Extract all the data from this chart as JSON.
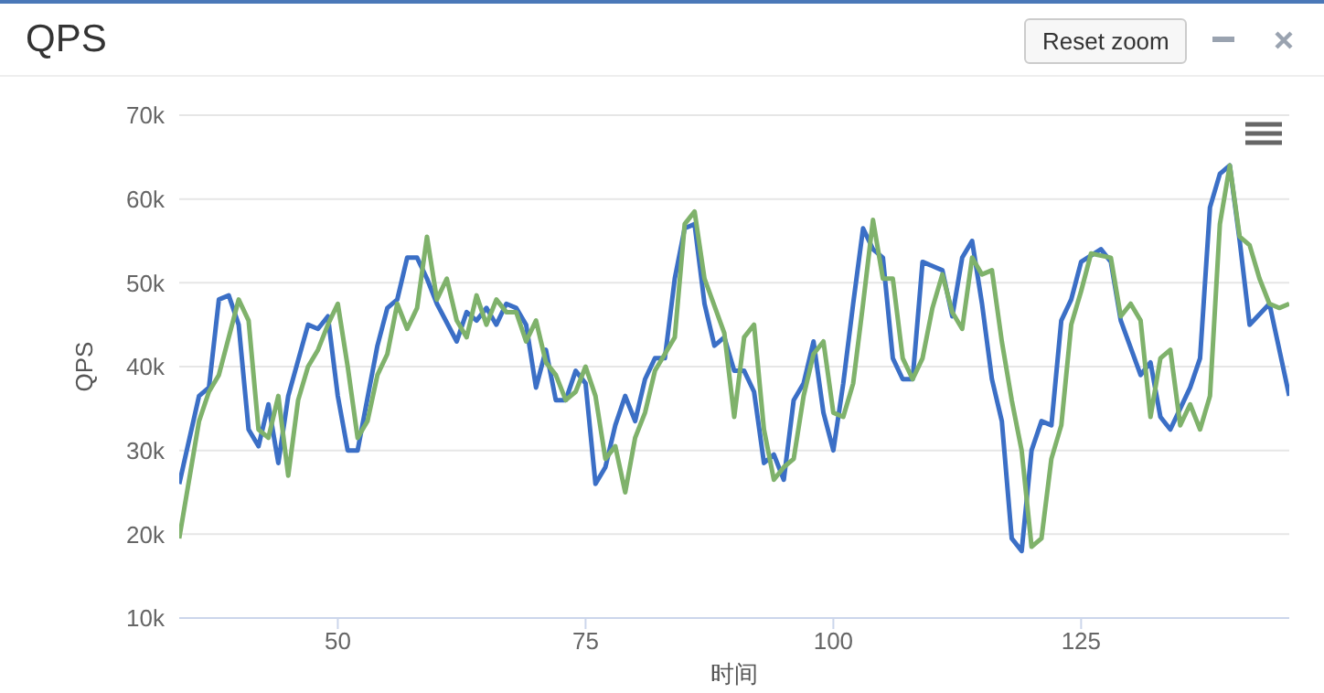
{
  "chart_data": {
    "type": "line",
    "title": "QPS",
    "xlabel": "时间",
    "ylabel": "QPS",
    "annotations": [
      "Reset zoom"
    ],
    "xlim": [
      34,
      146
    ],
    "xticks": [
      50,
      75,
      100,
      125
    ],
    "ylim": [
      10000,
      70000
    ],
    "yticks": [
      {
        "value": 10000,
        "label": "10k"
      },
      {
        "value": 20000,
        "label": "20k"
      },
      {
        "value": 30000,
        "label": "30k"
      },
      {
        "value": 40000,
        "label": "40k"
      },
      {
        "value": 50000,
        "label": "50k"
      },
      {
        "value": 60000,
        "label": "60k"
      },
      {
        "value": 70000,
        "label": "70k"
      }
    ],
    "grid": "y",
    "marker": "none",
    "line_style": "solid",
    "series": [
      {
        "color": "#3b6fc6",
        "x": [
          34,
          36,
          37,
          38,
          39,
          40,
          41,
          42,
          43,
          44,
          45,
          47,
          48,
          49,
          50,
          51,
          52,
          54,
          55,
          56,
          57,
          58,
          59,
          60,
          62,
          63,
          64,
          65,
          66,
          67,
          68,
          69,
          70,
          71,
          72,
          73,
          74,
          75,
          76,
          77,
          78,
          79,
          80,
          81,
          82,
          83,
          84,
          85,
          86,
          87,
          88,
          89,
          90,
          91,
          92,
          93,
          94,
          95,
          96,
          97,
          98,
          99,
          100,
          101,
          102,
          103,
          104,
          105,
          106,
          107,
          108,
          109,
          111,
          112,
          113,
          114,
          115,
          116,
          117,
          118,
          119,
          120,
          121,
          122,
          123,
          124,
          125,
          127,
          128,
          129,
          131,
          132,
          133,
          134,
          135,
          136,
          137,
          138,
          139,
          140,
          141,
          142,
          144,
          146
        ],
        "values": [
          26000,
          36500,
          37500,
          48000,
          48500,
          45000,
          32500,
          30500,
          35500,
          28500,
          36500,
          45000,
          44500,
          46000,
          36500,
          30000,
          30000,
          42500,
          47000,
          48000,
          53000,
          53000,
          50500,
          47500,
          43000,
          46500,
          45500,
          47000,
          45000,
          47500,
          47000,
          45000,
          37500,
          42000,
          36000,
          36000,
          39500,
          38000,
          26000,
          28000,
          33000,
          36500,
          33500,
          38500,
          41000,
          41000,
          50500,
          56500,
          57000,
          47500,
          42500,
          43500,
          39500,
          39500,
          37000,
          28500,
          29500,
          26500,
          36000,
          38000,
          43000,
          34500,
          30000,
          38000,
          47500,
          56500,
          54000,
          53000,
          41000,
          38500,
          38500,
          52500,
          51500,
          46000,
          53000,
          55000,
          47500,
          38500,
          33500,
          19500,
          18000,
          30000,
          33500,
          33000,
          45500,
          48000,
          52500,
          54000,
          52500,
          45500,
          39000,
          40500,
          34000,
          32500,
          35000,
          37500,
          41000,
          59000,
          63000,
          64000,
          55000,
          45000,
          47500,
          36500
        ]
      },
      {
        "color": "#7fb26b",
        "x": [
          34,
          36,
          37,
          38,
          39,
          40,
          41,
          42,
          43,
          44,
          45,
          46,
          47,
          48,
          49,
          50,
          51,
          52,
          53,
          54,
          55,
          56,
          57,
          58,
          59,
          60,
          61,
          62,
          63,
          64,
          65,
          66,
          67,
          68,
          69,
          70,
          71,
          72,
          73,
          74,
          75,
          76,
          77,
          78,
          79,
          80,
          81,
          82,
          84,
          85,
          86,
          87,
          89,
          90,
          91,
          92,
          93,
          94,
          95,
          96,
          97,
          98,
          99,
          100,
          101,
          102,
          103,
          104,
          105,
          106,
          107,
          108,
          109,
          110,
          111,
          112,
          113,
          114,
          115,
          116,
          117,
          118,
          119,
          120,
          121,
          122,
          123,
          124,
          125,
          126,
          128,
          129,
          130,
          131,
          132,
          133,
          134,
          135,
          136,
          137,
          138,
          139,
          140,
          141,
          142,
          143,
          144,
          145,
          146
        ],
        "values": [
          19500,
          33500,
          37000,
          39000,
          43500,
          48000,
          45500,
          32500,
          31500,
          36500,
          27000,
          36000,
          40000,
          42000,
          45000,
          47500,
          40000,
          31500,
          33500,
          39000,
          41500,
          47500,
          44500,
          47000,
          55500,
          48000,
          50500,
          45500,
          43500,
          48500,
          45000,
          48000,
          46500,
          46500,
          43000,
          45500,
          40500,
          39000,
          36000,
          37000,
          40000,
          36500,
          29000,
          30500,
          25000,
          31500,
          34500,
          39500,
          43500,
          57000,
          58500,
          50500,
          44000,
          34000,
          43500,
          45000,
          32500,
          26500,
          28000,
          29000,
          36500,
          41500,
          43000,
          34500,
          34000,
          38000,
          47500,
          57500,
          50500,
          50500,
          41000,
          38500,
          41000,
          47000,
          51000,
          46500,
          44500,
          53000,
          51000,
          51500,
          43000,
          36000,
          30000,
          18500,
          19500,
          29000,
          33000,
          45000,
          49000,
          53500,
          53000,
          46000,
          47500,
          45500,
          34000,
          41000,
          42000,
          33000,
          35500,
          32500,
          36500,
          57000,
          64000,
          55500,
          54500,
          50500,
          47500,
          47000,
          47500
        ]
      }
    ]
  }
}
